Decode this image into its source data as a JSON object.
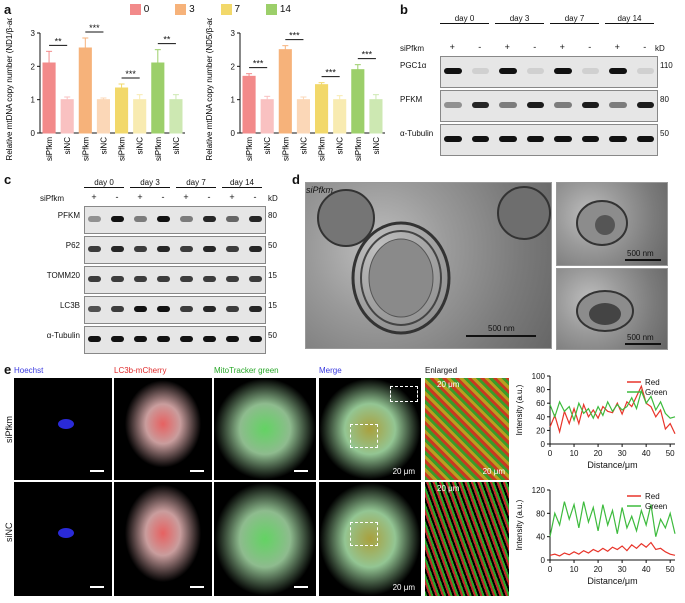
{
  "panels": {
    "a": "a",
    "b": "b",
    "c": "c",
    "d": "d",
    "e": "e"
  },
  "legend": [
    {
      "label": "0",
      "color": "#f28a8a"
    },
    {
      "label": "3",
      "color": "#f6b27a"
    },
    {
      "label": "7",
      "color": "#f2d86a"
    },
    {
      "label": "14",
      "color": "#9ccf6a"
    }
  ],
  "chart_data": [
    {
      "type": "bar",
      "ylabel": "Relative mtDNA copy number (ND1/β-actin)",
      "ylim": [
        0,
        3
      ],
      "yticks": [
        "0",
        "1",
        "2",
        "3"
      ],
      "categories": [
        "siPfkm",
        "siNC",
        "siPfkm",
        "siNC",
        "siPfkm",
        "siNC",
        "siPfkm",
        "siNC"
      ],
      "values": [
        2.1,
        1.0,
        2.55,
        1.0,
        1.35,
        1.0,
        2.1,
        1.0
      ],
      "errors": [
        0.35,
        0.08,
        0.3,
        0.05,
        0.12,
        0.15,
        0.4,
        0.15
      ],
      "colors": [
        "#f28a8a",
        "#f9c1c1",
        "#f6b27a",
        "#fbd7b7",
        "#f2d86a",
        "#f8ebb1",
        "#9ccf6a",
        "#cde8b2"
      ],
      "significance": [
        "**",
        "***",
        "***",
        "**"
      ]
    },
    {
      "type": "bar",
      "ylabel": "Relative mtDNA copy number (ND5/β-actin)",
      "ylim": [
        0,
        3
      ],
      "yticks": [
        "0",
        "1",
        "2",
        "3"
      ],
      "categories": [
        "siPfkm",
        "siNC",
        "siPfkm",
        "siNC",
        "siPfkm",
        "siNC",
        "siPfkm",
        "siNC"
      ],
      "values": [
        1.7,
        1.0,
        2.5,
        1.0,
        1.45,
        1.0,
        1.9,
        1.0
      ],
      "errors": [
        0.08,
        0.1,
        0.12,
        0.08,
        0.06,
        0.12,
        0.15,
        0.15
      ],
      "colors": [
        "#f28a8a",
        "#f9c1c1",
        "#f6b27a",
        "#fbd7b7",
        "#f2d86a",
        "#f8ebb1",
        "#9ccf6a",
        "#cde8b2"
      ],
      "significance": [
        "***",
        "***",
        "***",
        "***"
      ]
    },
    {
      "type": "line",
      "xlabel": "Distance/μm",
      "ylabel": "Intensity (a.u.)",
      "ylim": [
        0,
        100
      ],
      "yticks": [
        "0",
        "20",
        "40",
        "60",
        "80",
        "100"
      ],
      "xlim": [
        0,
        52
      ],
      "xticks": [
        "0",
        "10",
        "20",
        "30",
        "40",
        "50"
      ],
      "series": [
        {
          "name": "Red",
          "color": "#e8342a",
          "x": [
            0,
            2,
            4,
            6,
            8,
            10,
            12,
            14,
            16,
            18,
            20,
            22,
            24,
            26,
            28,
            30,
            32,
            34,
            36,
            38,
            40,
            42,
            44,
            46,
            48,
            50,
            52
          ],
          "y": [
            25,
            42,
            18,
            48,
            30,
            52,
            30,
            58,
            40,
            50,
            38,
            55,
            48,
            46,
            60,
            44,
            62,
            55,
            70,
            85,
            60,
            55,
            40,
            50,
            22,
            30,
            15
          ]
        },
        {
          "name": "Green",
          "color": "#3dbb3d",
          "x": [
            0,
            2,
            4,
            6,
            8,
            10,
            12,
            14,
            16,
            18,
            20,
            22,
            24,
            26,
            28,
            30,
            32,
            34,
            36,
            38,
            40,
            42,
            44,
            46,
            48,
            50,
            52
          ],
          "y": [
            58,
            40,
            62,
            48,
            55,
            35,
            60,
            45,
            52,
            38,
            55,
            42,
            62,
            48,
            58,
            50,
            55,
            68,
            52,
            78,
            60,
            70,
            50,
            62,
            45,
            38,
            40
          ]
        }
      ]
    },
    {
      "type": "line",
      "xlabel": "Distance/μm",
      "ylabel": "Intensity (a.u.)",
      "ylim": [
        0,
        120
      ],
      "yticks": [
        "0",
        "40",
        "80",
        "120"
      ],
      "xlim": [
        0,
        52
      ],
      "xticks": [
        "0",
        "10",
        "20",
        "30",
        "40",
        "50"
      ],
      "series": [
        {
          "name": "Red",
          "color": "#e8342a",
          "x": [
            0,
            2,
            4,
            6,
            8,
            10,
            12,
            14,
            16,
            18,
            20,
            22,
            24,
            26,
            28,
            30,
            32,
            34,
            36,
            38,
            40,
            42,
            44,
            46,
            48,
            50,
            52
          ],
          "y": [
            8,
            10,
            7,
            12,
            9,
            14,
            10,
            16,
            12,
            18,
            14,
            20,
            15,
            22,
            18,
            24,
            16,
            26,
            20,
            28,
            22,
            30,
            18,
            20,
            14,
            10,
            8
          ]
        },
        {
          "name": "Green",
          "color": "#3dbb3d",
          "x": [
            0,
            2,
            4,
            6,
            8,
            10,
            12,
            14,
            16,
            18,
            20,
            22,
            24,
            26,
            28,
            30,
            32,
            34,
            36,
            38,
            40,
            42,
            44,
            46,
            48,
            50,
            52
          ],
          "y": [
            40,
            80,
            60,
            100,
            70,
            95,
            55,
            100,
            65,
            90,
            50,
            95,
            60,
            85,
            45,
            90,
            55,
            75,
            50,
            85,
            60,
            95,
            40,
            70,
            55,
            80,
            45
          ]
        }
      ]
    }
  ],
  "blotB": {
    "days": [
      "day 0",
      "day 3",
      "day 7",
      "day 14"
    ],
    "treatment_label": "siPfkm",
    "signs": [
      "+",
      "-",
      "+",
      "-",
      "+",
      "-",
      "+",
      "-"
    ],
    "kd": "kD",
    "rows": [
      {
        "name": "PGC1α",
        "mw": "110"
      },
      {
        "name": "PFKM",
        "mw": "80"
      },
      {
        "name": "α-Tubulin",
        "mw": "50"
      }
    ]
  },
  "blotC": {
    "days": [
      "day 0",
      "day 3",
      "day 7",
      "day 14"
    ],
    "treatment_label": "siPfkm",
    "signs": [
      "+",
      "-",
      "+",
      "-",
      "+",
      "-",
      "+",
      "-"
    ],
    "kd": "kD",
    "rows": [
      {
        "name": "PFKM",
        "mw": "80"
      },
      {
        "name": "P62",
        "mw": "50"
      },
      {
        "name": "TOMM20",
        "mw": "15"
      },
      {
        "name": "LC3B",
        "mw": "15"
      },
      {
        "name": "α-Tubulin",
        "mw": "50"
      }
    ]
  },
  "em": {
    "label": "siPfkm",
    "scale_main": "500 nm",
    "scale_top": "500 nm",
    "scale_bottom": "500 nm"
  },
  "fluor": {
    "headers": [
      {
        "text": "Hoechst",
        "color": "#3a3ae0"
      },
      {
        "text": "LC3b-mCherry",
        "color": "#e02a2a"
      },
      {
        "text": "MitoTracker green",
        "color": "#2aa82a"
      },
      {
        "text": "Merge",
        "color": "#3a3ae0"
      },
      {
        "text": "Enlarged",
        "color": "#111111"
      }
    ],
    "rows": [
      {
        "label": "siPfkm"
      },
      {
        "label": "siNC"
      }
    ],
    "scale": "20 μm"
  }
}
